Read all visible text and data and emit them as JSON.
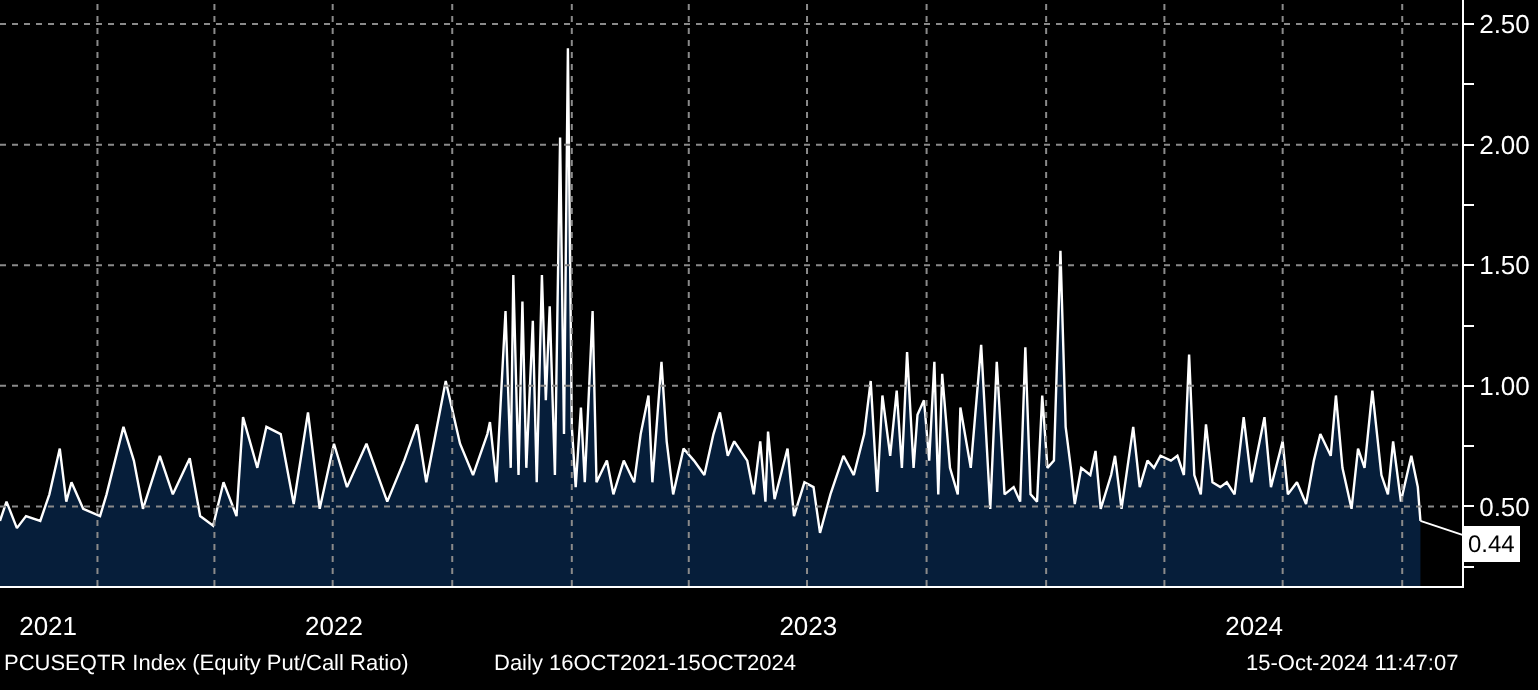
{
  "chart_data": {
    "type": "area",
    "x": [
      "2021-10-18",
      "2021-10-23",
      "2021-10-31",
      "2021-11-07",
      "2021-11-18",
      "2021-11-25",
      "2021-12-03",
      "2021-12-08",
      "2021-12-12",
      "2021-12-21",
      "2022-01-03",
      "2022-01-08",
      "2022-01-21",
      "2022-01-29",
      "2022-02-05",
      "2022-02-18",
      "2022-02-28",
      "2022-03-13",
      "2022-03-21",
      "2022-03-31",
      "2022-04-08",
      "2022-04-18",
      "2022-04-23",
      "2022-05-04",
      "2022-05-11",
      "2022-05-22",
      "2022-06-01",
      "2022-06-12",
      "2022-06-21",
      "2022-07-02",
      "2022-07-12",
      "2022-07-27",
      "2022-08-12",
      "2022-08-25",
      "2022-09-04",
      "2022-09-11",
      "2022-09-26",
      "2022-10-07",
      "2022-10-17",
      "2022-10-28",
      "2022-10-30",
      "2022-11-04",
      "2022-11-11",
      "2022-11-15",
      "2022-11-17",
      "2022-11-21",
      "2022-11-24",
      "2022-11-27",
      "2022-12-02",
      "2022-12-05",
      "2022-12-09",
      "2022-12-12",
      "2022-12-15",
      "2022-12-19",
      "2022-12-23",
      "2022-12-26",
      "2022-12-29",
      "2023-01-01",
      "2023-01-04",
      "2023-01-08",
      "2023-01-11",
      "2023-01-17",
      "2023-01-20",
      "2023-01-28",
      "2023-02-02",
      "2023-02-10",
      "2023-02-18",
      "2023-02-23",
      "2023-03-01",
      "2023-03-04",
      "2023-03-11",
      "2023-03-15",
      "2023-03-20",
      "2023-03-28",
      "2023-04-05",
      "2023-04-13",
      "2023-04-20",
      "2023-04-25",
      "2023-05-01",
      "2023-05-06",
      "2023-05-16",
      "2023-05-21",
      "2023-05-26",
      "2023-05-30",
      "2023-06-01",
      "2023-06-06",
      "2023-06-16",
      "2023-06-21",
      "2023-06-29",
      "2023-07-06",
      "2023-07-11",
      "2023-07-19",
      "2023-07-29",
      "2023-08-06",
      "2023-08-14",
      "2023-08-19",
      "2023-08-24",
      "2023-08-28",
      "2023-09-03",
      "2023-09-08",
      "2023-09-12",
      "2023-09-16",
      "2023-09-21",
      "2023-09-24",
      "2023-09-29",
      "2023-10-03",
      "2023-10-07",
      "2023-10-10",
      "2023-10-13",
      "2023-10-19",
      "2023-10-25",
      "2023-10-27",
      "2023-11-04",
      "2023-11-12",
      "2023-11-19",
      "2023-11-24",
      "2023-11-30",
      "2023-12-07",
      "2023-12-12",
      "2023-12-16",
      "2023-12-20",
      "2023-12-25",
      "2023-12-29",
      "2024-01-02",
      "2024-01-07",
      "2024-01-12",
      "2024-01-16",
      "2024-01-20",
      "2024-01-23",
      "2024-01-28",
      "2024-02-04",
      "2024-02-08",
      "2024-02-12",
      "2024-02-20",
      "2024-02-23",
      "2024-02-28",
      "2024-03-08",
      "2024-03-13",
      "2024-03-19",
      "2024-03-24",
      "2024-03-29",
      "2024-04-06",
      "2024-04-11",
      "2024-04-16",
      "2024-04-20",
      "2024-04-24",
      "2024-04-29",
      "2024-05-03",
      "2024-05-08",
      "2024-05-14",
      "2024-05-19",
      "2024-05-25",
      "2024-06-01",
      "2024-06-07",
      "2024-06-17",
      "2024-06-22",
      "2024-07-01",
      "2024-07-05",
      "2024-07-12",
      "2024-07-19",
      "2024-07-25",
      "2024-07-30",
      "2024-08-07",
      "2024-08-11",
      "2024-08-16",
      "2024-08-23",
      "2024-08-28",
      "2024-09-02",
      "2024-09-08",
      "2024-09-15",
      "2024-09-20",
      "2024-09-24",
      "2024-09-30",
      "2024-10-08",
      "2024-10-13",
      "2024-10-15"
    ],
    "series": [
      {
        "color": "#061e3a",
        "values": [
          0.44,
          0.52,
          0.41,
          0.46,
          0.44,
          0.55,
          0.74,
          0.52,
          0.6,
          0.49,
          0.46,
          0.55,
          0.83,
          0.69,
          0.49,
          0.71,
          0.55,
          0.7,
          0.46,
          0.42,
          0.6,
          0.46,
          0.87,
          0.66,
          0.83,
          0.8,
          0.51,
          0.89,
          0.49,
          0.76,
          0.58,
          0.76,
          0.52,
          0.69,
          0.84,
          0.6,
          1.02,
          0.76,
          0.63,
          0.8,
          0.85,
          0.6,
          1.31,
          0.66,
          1.46,
          0.63,
          1.35,
          0.66,
          1.27,
          0.6,
          1.46,
          0.94,
          1.33,
          0.63,
          2.03,
          0.8,
          2.4,
          0.83,
          0.58,
          0.91,
          0.6,
          1.31,
          0.6,
          0.69,
          0.55,
          0.69,
          0.6,
          0.8,
          0.96,
          0.6,
          1.1,
          0.77,
          0.55,
          0.74,
          0.69,
          0.63,
          0.8,
          0.89,
          0.71,
          0.77,
          0.69,
          0.55,
          0.77,
          0.52,
          0.81,
          0.53,
          0.74,
          0.46,
          0.6,
          0.58,
          0.39,
          0.55,
          0.71,
          0.63,
          0.8,
          1.02,
          0.56,
          0.96,
          0.71,
          0.98,
          0.66,
          1.14,
          0.66,
          0.88,
          0.94,
          0.69,
          1.1,
          0.55,
          1.05,
          0.66,
          0.55,
          0.91,
          0.66,
          1.17,
          0.49,
          1.1,
          0.55,
          0.58,
          0.52,
          1.16,
          0.55,
          0.52,
          0.96,
          0.66,
          0.69,
          1.56,
          0.83,
          0.66,
          0.51,
          0.66,
          0.63,
          0.73,
          0.49,
          0.63,
          0.71,
          0.49,
          0.83,
          0.58,
          0.69,
          0.66,
          0.71,
          0.69,
          0.71,
          0.63,
          1.13,
          0.63,
          0.55,
          0.84,
          0.6,
          0.58,
          0.6,
          0.55,
          0.87,
          0.6,
          0.87,
          0.58,
          0.77,
          0.55,
          0.6,
          0.51,
          0.69,
          0.8,
          0.71,
          0.96,
          0.66,
          0.49,
          0.74,
          0.66,
          0.98,
          0.63,
          0.55,
          0.77,
          0.52,
          0.71,
          0.58,
          0.44
        ]
      }
    ],
    "xlim": [
      "2021-10-18",
      "2024-11-16"
    ],
    "xticks": [
      {
        "value": "2021-11-24",
        "label": "2021"
      },
      {
        "value": "2022-01-01",
        "label": null
      },
      {
        "value": "2022-04-01",
        "label": null
      },
      {
        "value": "2022-07-01",
        "label": null
      },
      {
        "value": "2022-07-02",
        "label": "2022"
      },
      {
        "value": "2022-10-01",
        "label": null
      },
      {
        "value": "2023-01-01",
        "label": null
      },
      {
        "value": "2023-04-01",
        "label": null
      },
      {
        "value": "2023-07-01",
        "label": null
      },
      {
        "value": "2023-07-02",
        "label": "2023"
      },
      {
        "value": "2023-10-01",
        "label": null
      },
      {
        "value": "2024-01-01",
        "label": null
      },
      {
        "value": "2024-04-01",
        "label": null
      },
      {
        "value": "2024-06-09",
        "label": "2024"
      },
      {
        "value": "2024-07-01",
        "label": null
      },
      {
        "value": "2024-10-01",
        "label": null
      }
    ],
    "ylim": [
      0.17,
      2.6
    ],
    "yticks": [
      {
        "value": 0.25,
        "label": null
      },
      {
        "value": 0.5,
        "label": "0.50"
      },
      {
        "value": 0.75,
        "label": null
      },
      {
        "value": 1.0,
        "label": "1.00"
      },
      {
        "value": 1.25,
        "label": null
      },
      {
        "value": 1.5,
        "label": "1.50"
      },
      {
        "value": 1.75,
        "label": null
      },
      {
        "value": 2.0,
        "label": "2.00"
      },
      {
        "value": 2.25,
        "label": null
      },
      {
        "value": 2.5,
        "label": "2.50"
      }
    ],
    "grid": true,
    "annotations": [
      {
        "text": "0.44",
        "x": "2024-10-15",
        "y": 0.44
      },
      "PCUSEQTR Index (Equity Put/Call Ratio)",
      "Daily 16OCT2021-15OCT2024",
      "15-Oct-2024 11:47:07"
    ]
  }
}
